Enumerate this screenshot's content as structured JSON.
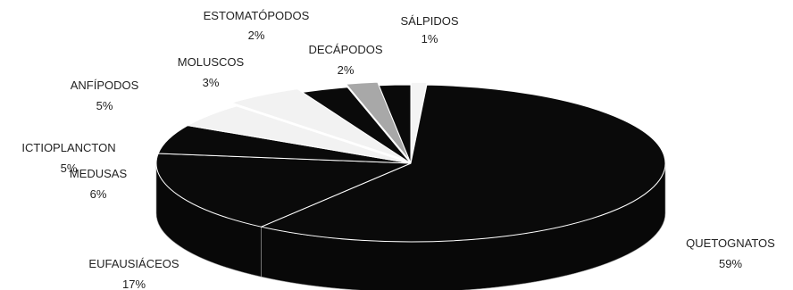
{
  "chart_data": {
    "type": "pie",
    "style": "3d-exploded",
    "start_direction": "top",
    "colors": {
      "background": "#ffffff",
      "dark_slice": "#0a0a0a",
      "light_slice": "#f2f2f2",
      "gray_slice": "#a8a8a8",
      "label": "#222222"
    },
    "slices": [
      {
        "label": "SÁLPIDOS",
        "value": 1,
        "display": "1%",
        "color": "#f4f4f4"
      },
      {
        "label": "QUETOGNATOS",
        "value": 59,
        "display": "59%",
        "color": "#0a0a0a"
      },
      {
        "label": "EUFAUSIÁCEOS",
        "value": 17,
        "display": "17%",
        "color": "#0a0a0a"
      },
      {
        "label": "MEDUSAS",
        "value": 6,
        "display": "6%",
        "color": "#0a0a0a"
      },
      {
        "label": "ICTIOPLANCTON",
        "value": 5,
        "display": "5%",
        "color": "#f2f2f2"
      },
      {
        "label": "ANFÍPODOS",
        "value": 5,
        "display": "5%",
        "color": "#f2f2f2"
      },
      {
        "label": "MOLUSCOS",
        "value": 3,
        "display": "3%",
        "color": "#0a0a0a"
      },
      {
        "label": "ESTOMATÓPODOS",
        "value": 2,
        "display": "2%",
        "color": "#a8a8a8"
      },
      {
        "label": "DECÁPODOS",
        "value": 2,
        "display": "2%",
        "color": "#0a0a0a"
      }
    ]
  }
}
